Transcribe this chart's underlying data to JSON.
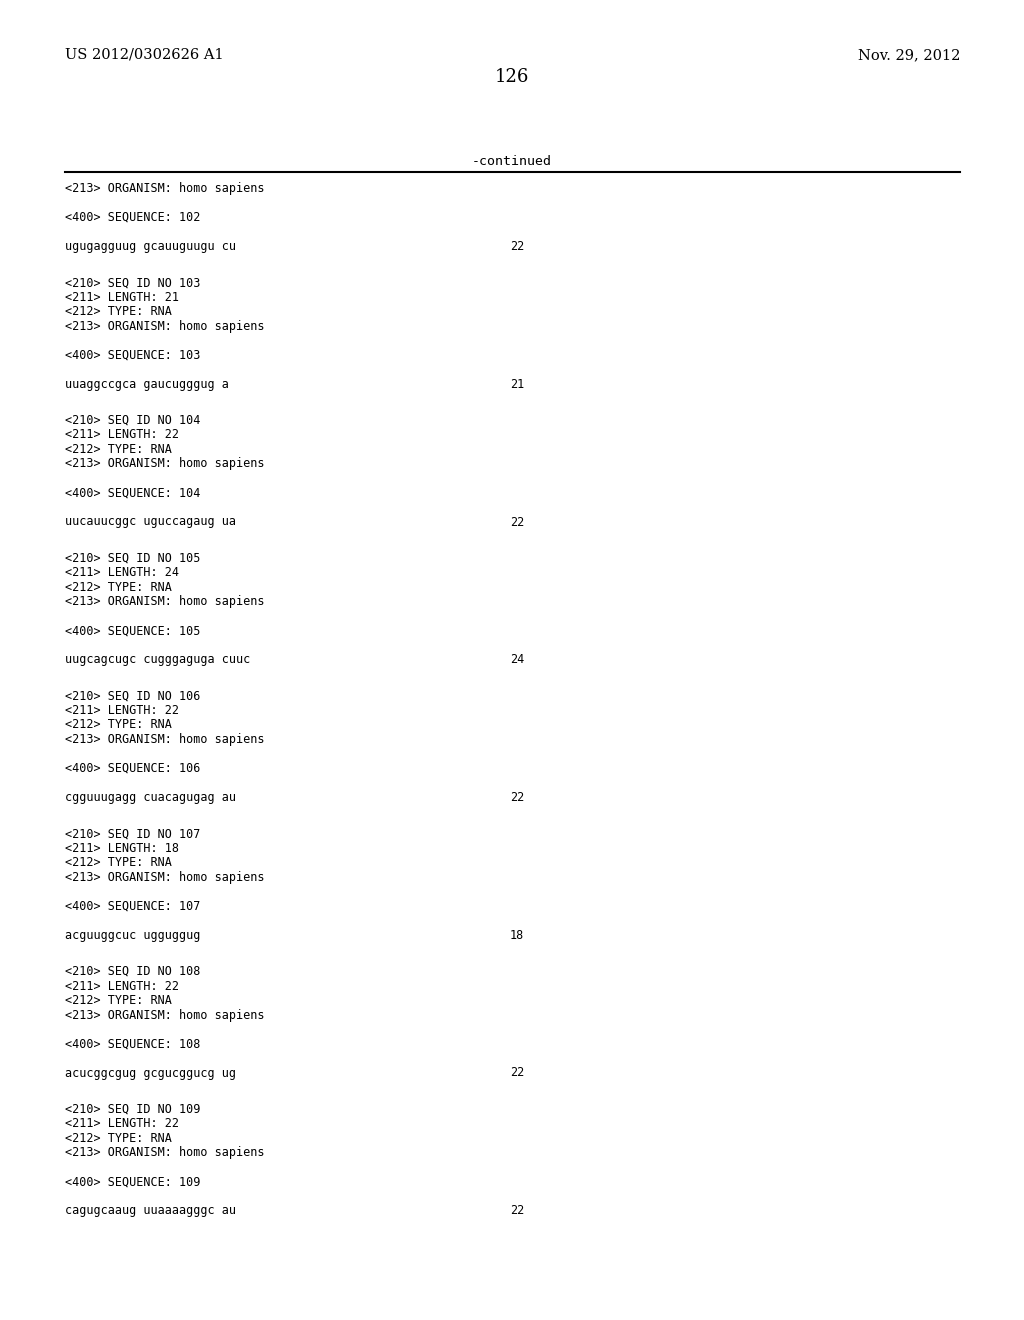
{
  "header_left": "US 2012/0302626 A1",
  "header_right": "Nov. 29, 2012",
  "page_number": "126",
  "continued_label": "-continued",
  "background_color": "#ffffff",
  "text_color": "#000000",
  "line_color": "#000000",
  "header_fontsize": 10.5,
  "page_num_fontsize": 13,
  "mono_fontsize": 8.5,
  "content_blocks": [
    {
      "lines": [
        "<213> ORGANISM: homo sapiens",
        "",
        "<400> SEQUENCE: 102",
        "",
        "ugugagguug gcauuguugu cu"
      ],
      "number": "22",
      "number_line": 4
    },
    {
      "lines": [
        "<210> SEQ ID NO 103",
        "<211> LENGTH: 21",
        "<212> TYPE: RNA",
        "<213> ORGANISM: homo sapiens",
        "",
        "<400> SEQUENCE: 103",
        "",
        "uuaggccgca gaucugggug a"
      ],
      "number": "21",
      "number_line": 7
    },
    {
      "lines": [
        "<210> SEQ ID NO 104",
        "<211> LENGTH: 22",
        "<212> TYPE: RNA",
        "<213> ORGANISM: homo sapiens",
        "",
        "<400> SEQUENCE: 104",
        "",
        "uucauucggc uguccagaug ua"
      ],
      "number": "22",
      "number_line": 7
    },
    {
      "lines": [
        "<210> SEQ ID NO 105",
        "<211> LENGTH: 24",
        "<212> TYPE: RNA",
        "<213> ORGANISM: homo sapiens",
        "",
        "<400> SEQUENCE: 105",
        "",
        "uugcagcugc cugggaguga cuuc"
      ],
      "number": "24",
      "number_line": 7
    },
    {
      "lines": [
        "<210> SEQ ID NO 106",
        "<211> LENGTH: 22",
        "<212> TYPE: RNA",
        "<213> ORGANISM: homo sapiens",
        "",
        "<400> SEQUENCE: 106",
        "",
        "cgguuugagg cuacagugag au"
      ],
      "number": "22",
      "number_line": 7
    },
    {
      "lines": [
        "<210> SEQ ID NO 107",
        "<211> LENGTH: 18",
        "<212> TYPE: RNA",
        "<213> ORGANISM: homo sapiens",
        "",
        "<400> SEQUENCE: 107",
        "",
        "acguuggcuc ugguggug"
      ],
      "number": "18",
      "number_line": 7
    },
    {
      "lines": [
        "<210> SEQ ID NO 108",
        "<211> LENGTH: 22",
        "<212> TYPE: RNA",
        "<213> ORGANISM: homo sapiens",
        "",
        "<400> SEQUENCE: 108",
        "",
        "acucggcgug gcgucggucg ug"
      ],
      "number": "22",
      "number_line": 7
    },
    {
      "lines": [
        "<210> SEQ ID NO 109",
        "<211> LENGTH: 22",
        "<212> TYPE: RNA",
        "<213> ORGANISM: homo sapiens",
        "",
        "<400> SEQUENCE: 109",
        "",
        "cagugcaaug uuaaaagggc au"
      ],
      "number": "22",
      "number_line": 7
    }
  ]
}
